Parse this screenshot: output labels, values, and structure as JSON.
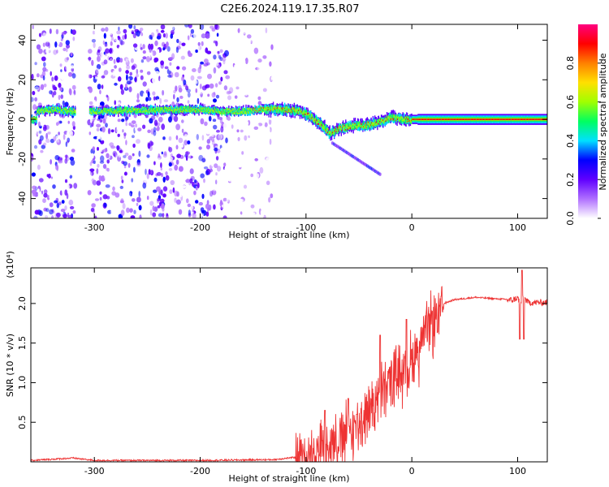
{
  "figure": {
    "title": "C2E6.2024.119.17.35.R07"
  },
  "chart_data": [
    {
      "type": "heatmap",
      "xlabel": "Height of straight line (km)",
      "ylabel": "Frequency (Hz)",
      "xlim": [
        -360,
        128
      ],
      "ylim": [
        -50,
        48
      ],
      "x_ticks": [
        -300,
        -200,
        -100,
        0,
        100
      ],
      "x_tick_labels": [
        "-300",
        "-200",
        "-100",
        "0",
        "100"
      ],
      "y_ticks": [
        -40,
        -20,
        0,
        20,
        40
      ],
      "y_tick_labels": [
        "-40",
        "-20",
        "0",
        "20",
        "40"
      ],
      "colorbar": {
        "label": "Normalized spectral amplitude",
        "range": [
          0,
          1
        ],
        "ticks": [
          0.0,
          0.2,
          0.4,
          0.6,
          0.8
        ],
        "tick_labels": [
          "0.0",
          "0.2",
          "0.4",
          "0.6",
          "0.8"
        ],
        "colors": [
          "#ffffff",
          "#b070ff",
          "#6000ff",
          "#0000ff",
          "#00e0ff",
          "#00ff60",
          "#a0ff00",
          "#ffe000",
          "#ff8000",
          "#ff0000",
          "#ff0080"
        ]
      },
      "trace": {
        "x": [
          -355,
          -340,
          -320,
          -310,
          -215,
          -200,
          -180,
          -160,
          -140,
          -120,
          -105,
          -95,
          -85,
          -78,
          -70,
          -62,
          -55,
          -45,
          -35,
          -25,
          -18,
          -10,
          0,
          20,
          50,
          80,
          110,
          128
        ],
        "y": [
          4,
          5,
          4,
          4,
          5,
          5,
          4,
          4,
          5,
          5,
          4,
          1,
          -3,
          -7,
          -5,
          -4,
          -3,
          -3,
          -2,
          0,
          1,
          0,
          0,
          0,
          0,
          0,
          0,
          0
        ]
      },
      "noise_regions": [
        [
          -360,
          -318
        ],
        [
          -305,
          -130
        ]
      ],
      "gap_region": [
        -318,
        -305
      ]
    },
    {
      "type": "line",
      "xlabel": "Height of straight line (km)",
      "ylabel": "SNR (10 * v/v)",
      "scale_label": "(x10⁴)",
      "xlim": [
        -360,
        128
      ],
      "ylim": [
        0.0,
        2.45
      ],
      "x_ticks": [
        -300,
        -200,
        -100,
        0,
        100
      ],
      "x_tick_labels": [
        "-300",
        "-200",
        "-100",
        "0",
        "100"
      ],
      "y_ticks": [
        0.5,
        1.0,
        1.5,
        2.0
      ],
      "y_tick_labels": [
        "0.5",
        "1.0",
        "1.5",
        "2.0"
      ],
      "color": "#ee3333",
      "envelope": {
        "x": [
          -360,
          -320,
          -300,
          -200,
          -130,
          -110,
          -100,
          -90,
          -80,
          -70,
          -60,
          -50,
          -40,
          -30,
          -20,
          -10,
          0,
          10,
          20,
          30,
          40,
          60,
          80,
          95,
          100,
          103,
          105,
          110,
          128
        ],
        "y": [
          0.02,
          0.05,
          0.02,
          0.02,
          0.03,
          0.06,
          0.1,
          0.2,
          0.3,
          0.35,
          0.45,
          0.55,
          0.75,
          0.9,
          1.1,
          1.2,
          1.35,
          1.6,
          1.85,
          2.0,
          2.05,
          2.08,
          2.06,
          2.05,
          2.08,
          2.0,
          2.1,
          2.02,
          2.02
        ]
      },
      "spikes": [
        {
          "x": -82,
          "y": 0.65
        },
        {
          "x": -60,
          "y": 0.8
        },
        {
          "x": -52,
          "y": 0.6
        },
        {
          "x": -30,
          "y": 1.6
        },
        {
          "x": -5,
          "y": 1.8
        },
        {
          "x": 102,
          "y": 1.55
        },
        {
          "x": 104,
          "y": 2.42
        },
        {
          "x": 106,
          "y": 1.55
        }
      ]
    }
  ]
}
